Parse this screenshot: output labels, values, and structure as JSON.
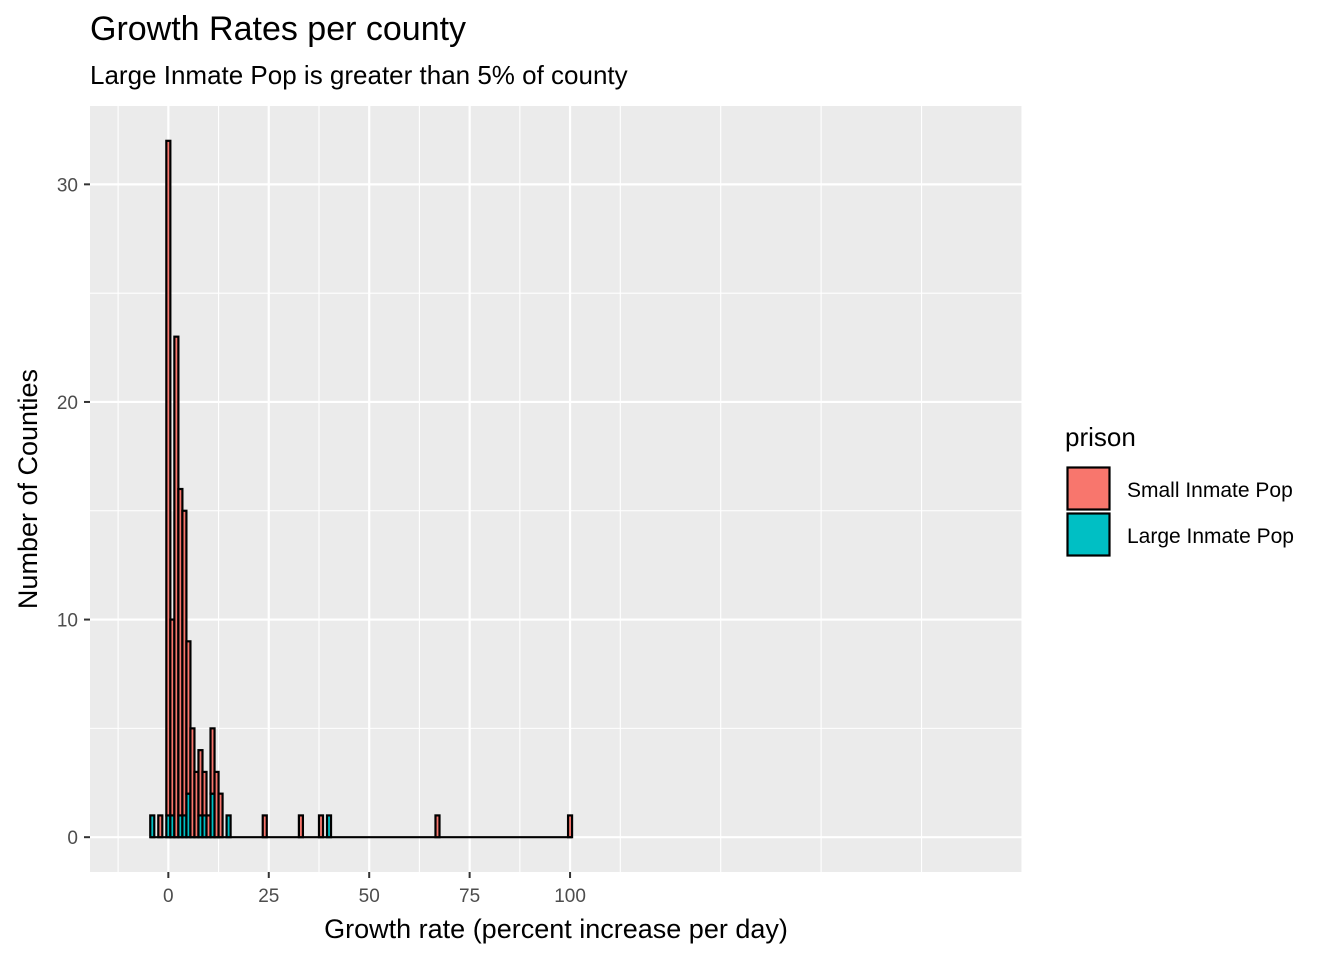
{
  "chart_data": {
    "type": "bar",
    "title": "Growth Rates per county",
    "subtitle": "Large Inmate Pop is greater than 5% of county",
    "xlabel": "Growth rate (percent increase per day)",
    "ylabel": "Number of Counties",
    "xlim": [
      -19.5,
      212.5
    ],
    "ylim": [
      -1.6,
      33.6
    ],
    "xticks": [
      0,
      25,
      50,
      75,
      100
    ],
    "yticks": [
      0,
      10,
      20,
      30
    ],
    "bin_width": 1,
    "grid": true,
    "stacked": true,
    "legend": {
      "title": "prison",
      "position": "right"
    },
    "series": [
      {
        "name": "Small Inmate Pop",
        "color": "#F8766D",
        "x": [
          -2,
          0,
          1,
          2,
          3,
          4,
          5,
          6,
          7,
          8,
          9,
          10,
          11,
          12,
          13,
          24,
          33,
          38,
          67,
          100
        ],
        "values": [
          1,
          31,
          9,
          23,
          15,
          14,
          7,
          5,
          3,
          3,
          2,
          1,
          3,
          3,
          2,
          1,
          1,
          1,
          1,
          1
        ]
      },
      {
        "name": "Large Inmate Pop",
        "color": "#00BFC4",
        "x": [
          -4,
          0,
          1,
          3,
          4,
          5,
          8,
          9,
          11,
          15,
          40
        ],
        "values": [
          1,
          1,
          1,
          1,
          1,
          2,
          1,
          1,
          2,
          1,
          1
        ]
      }
    ],
    "range_start": -4,
    "range_end": 100
  }
}
